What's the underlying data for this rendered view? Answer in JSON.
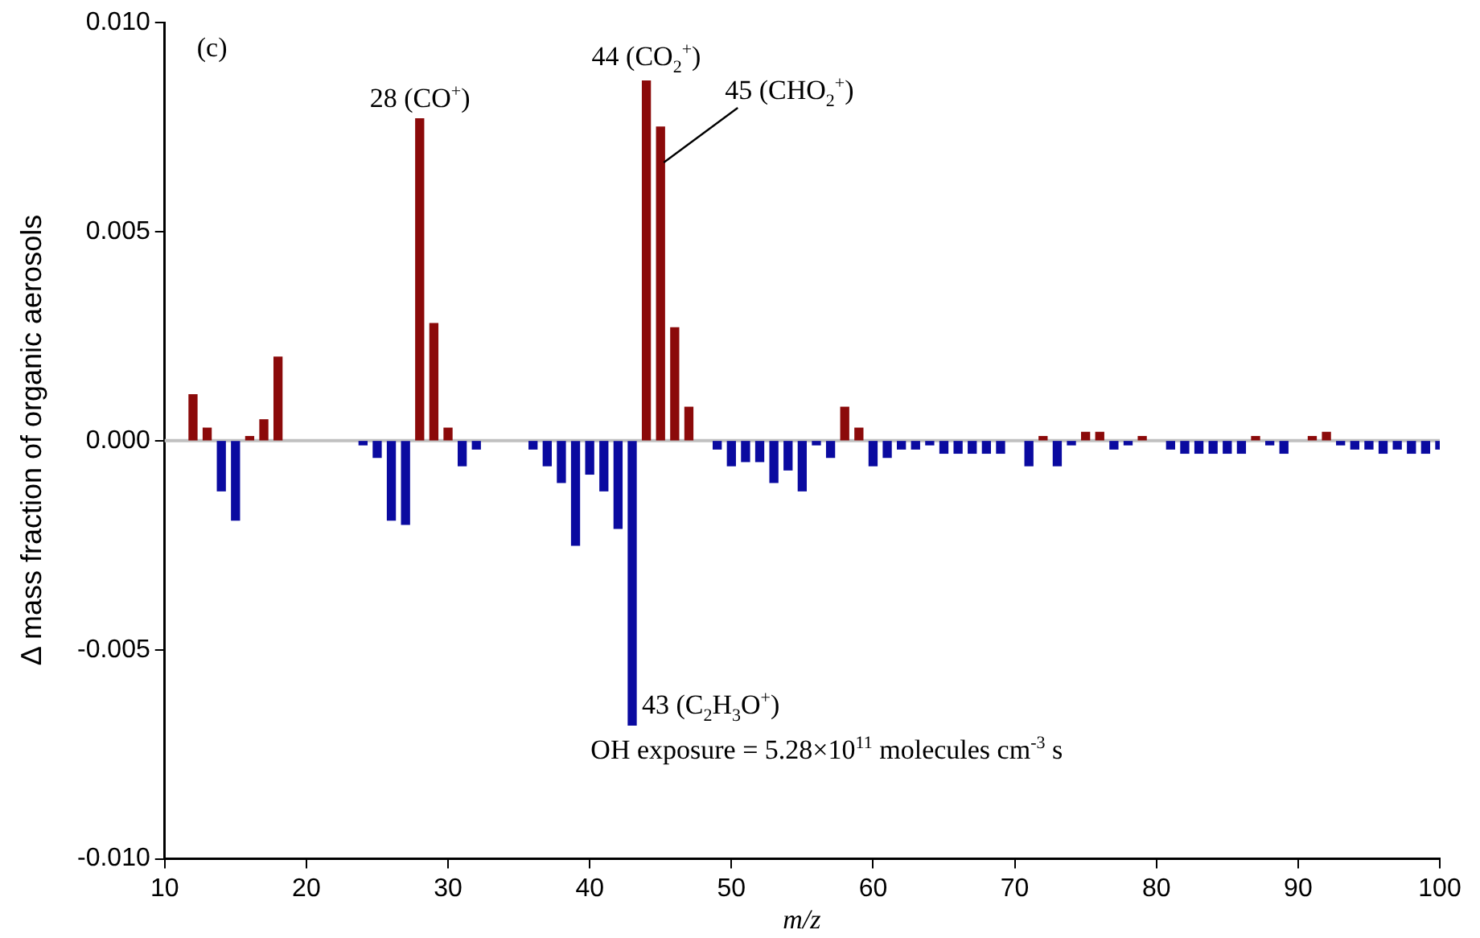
{
  "chart_data": {
    "type": "bar",
    "xlabel": "m/z",
    "ylabel": "Δ mass fraction of organic aerosols",
    "x": [
      12,
      13,
      14,
      15,
      16,
      17,
      18,
      19,
      20,
      21,
      22,
      23,
      24,
      25,
      26,
      27,
      28,
      29,
      30,
      31,
      32,
      33,
      34,
      35,
      36,
      37,
      38,
      39,
      40,
      41,
      42,
      43,
      44,
      45,
      46,
      47,
      48,
      49,
      50,
      51,
      52,
      53,
      54,
      55,
      56,
      57,
      58,
      59,
      60,
      61,
      62,
      63,
      64,
      65,
      66,
      67,
      68,
      69,
      70,
      71,
      72,
      73,
      74,
      75,
      76,
      77,
      78,
      79,
      80,
      81,
      82,
      83,
      84,
      85,
      86,
      87,
      88,
      89,
      90,
      91,
      92,
      93,
      94,
      95,
      96,
      97,
      98,
      99,
      100
    ],
    "series": [
      {
        "color": "#8b0a0a",
        "values": [
          0.0011,
          0.0003,
          null,
          null,
          0.0001,
          0.0005,
          0.002,
          null,
          null,
          null,
          null,
          null,
          null,
          null,
          null,
          null,
          0.0077,
          0.0028,
          0.0003,
          null,
          null,
          null,
          null,
          null,
          null,
          null,
          null,
          null,
          null,
          null,
          null,
          null,
          0.0086,
          0.0075,
          0.0027,
          0.0008,
          null,
          null,
          null,
          null,
          null,
          null,
          null,
          null,
          null,
          null,
          0.0008,
          0.0003,
          null,
          null,
          null,
          null,
          null,
          null,
          null,
          null,
          null,
          null,
          null,
          null,
          0.0001,
          null,
          null,
          0.0002,
          0.0002,
          null,
          null,
          0.0001,
          null,
          null,
          null,
          null,
          null,
          null,
          null,
          0.0001,
          null,
          null,
          null,
          0.0001,
          0.0002,
          null,
          null,
          null,
          null,
          null,
          null,
          null,
          null
        ]
      },
      {
        "color": "#0a0aa0",
        "values": [
          null,
          null,
          -0.0012,
          -0.0019,
          null,
          null,
          null,
          null,
          null,
          null,
          null,
          null,
          -0.0001,
          -0.0004,
          -0.0019,
          -0.002,
          null,
          null,
          null,
          -0.0006,
          -0.0002,
          null,
          null,
          null,
          -0.0002,
          -0.0006,
          -0.001,
          -0.0025,
          -0.0008,
          -0.0012,
          -0.0021,
          -0.0068,
          null,
          null,
          null,
          null,
          null,
          -0.0002,
          -0.0006,
          -0.0005,
          -0.0005,
          -0.001,
          -0.0007,
          -0.0012,
          -0.0001,
          -0.0004,
          null,
          null,
          -0.0006,
          -0.0004,
          -0.0002,
          -0.0002,
          -0.0001,
          -0.0003,
          -0.0003,
          -0.0003,
          -0.0003,
          -0.0003,
          null,
          -0.0006,
          null,
          -0.0006,
          -0.0001,
          null,
          null,
          -0.0002,
          -0.0001,
          null,
          null,
          -0.0002,
          -0.0003,
          -0.0003,
          -0.0003,
          -0.0003,
          -0.0003,
          null,
          -0.0001,
          -0.0003,
          null,
          null,
          null,
          -0.0001,
          -0.0002,
          -0.0002,
          -0.0003,
          -0.0002,
          -0.0003,
          -0.0003,
          -0.0002
        ]
      }
    ],
    "xlim": [
      10,
      100
    ],
    "xticks": [
      10,
      20,
      30,
      40,
      50,
      60,
      70,
      80,
      90,
      100
    ],
    "ylim": [
      -0.01,
      0.01
    ],
    "yticks": [
      {
        "value": -0.01,
        "label": "-0.010"
      },
      {
        "value": -0.005,
        "label": "-0.005"
      },
      {
        "value": 0,
        "label": "0.000"
      },
      {
        "value": 0.005,
        "label": "0.005"
      },
      {
        "value": 0.01,
        "label": "0.010"
      }
    ],
    "ref_lines": [
      {
        "axis": "y",
        "value": 0,
        "color": "#c0c0c0"
      }
    ],
    "annotations": [
      "(c)",
      {
        "text": "28 (CO$^{+}$)",
        "x": 28,
        "y": 0.0077
      },
      {
        "text": "44 (CO$_{2}$$^{+}$)",
        "x": 44,
        "y": 0.0086
      },
      {
        "text": "45 (CHO$_{2}$$^{+}$)",
        "x": 45,
        "y": 0.0075
      },
      {
        "text": "43 (C$_{2}$H$_{3}$O$^{+}$)",
        "x": 43,
        "y": -0.0068
      },
      "OH exposure = 5.28×10$^{11}$ molecules cm$^{-3}$ s"
    ],
    "grid": false,
    "legend": false
  }
}
